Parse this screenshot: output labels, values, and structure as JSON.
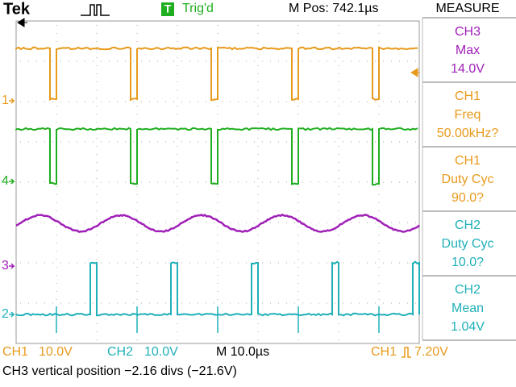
{
  "header": {
    "brand": "Tek",
    "trigger_icon": "T",
    "trigger_status": "Trig'd",
    "position": "M Pos: 742.1µs"
  },
  "markers": [
    "1",
    "4",
    "3",
    "2"
  ],
  "measure": {
    "title": "MEASURE",
    "items": [
      {
        "channel": "CH3",
        "type": "Max",
        "value": "14.0V"
      },
      {
        "channel": "CH1",
        "type": "Freq",
        "value": "50.00kHz?"
      },
      {
        "channel": "CH1",
        "type": "Duty Cyc",
        "value": "90.0?"
      },
      {
        "channel": "CH2",
        "type": "Duty Cyc",
        "value": "10.0?"
      },
      {
        "channel": "CH2",
        "type": "Mean",
        "value": "1.04V"
      }
    ]
  },
  "footer": {
    "ch1": "CH1",
    "ch1_scale": "10.0V",
    "ch2": "CH2",
    "ch2_scale": "10.0V",
    "timebase": "M 10.0µs",
    "trigger_source": "CH1",
    "trigger_level": "7.20V",
    "status": "CH3 vertical position −2.16 divs (−21.6V)"
  }
}
